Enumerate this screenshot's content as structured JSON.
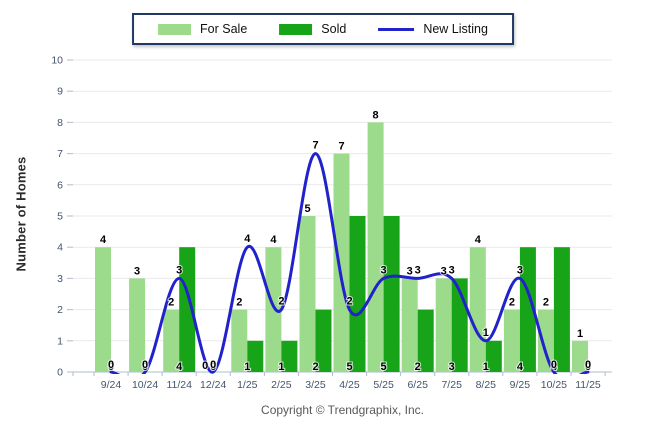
{
  "chart": {
    "ylabel": "Number of Homes",
    "copyright": "Copyright © Trendgraphix, Inc.",
    "legend": [
      {
        "label": "For Sale",
        "type": "bar",
        "color": "#9CDB8C"
      },
      {
        "label": "Sold",
        "type": "bar",
        "color": "#18A418"
      },
      {
        "label": "New Listing",
        "type": "line",
        "color": "#2222CC"
      }
    ],
    "colors": {
      "grid": "#E9E9EC",
      "axis": "#AEBDCE",
      "tick_text": "#44546A",
      "value_text": "#000000",
      "legend_border": "#1F3864"
    }
  },
  "chart_data": {
    "type": "bar",
    "title": "",
    "xlabel": "",
    "ylabel": "Number of Homes",
    "categories": [
      "9/24",
      "10/24",
      "11/24",
      "12/24",
      "1/25",
      "2/25",
      "3/25",
      "4/25",
      "5/25",
      "6/25",
      "7/25",
      "8/25",
      "9/25",
      "10/25",
      "11/25"
    ],
    "series": [
      {
        "name": "For Sale",
        "type": "bar",
        "color": "#9CDB8C",
        "values": [
          4,
          3,
          2,
          0,
          2,
          4,
          5,
          7,
          8,
          3,
          3,
          4,
          2,
          2,
          1
        ]
      },
      {
        "name": "Sold",
        "type": "bar",
        "color": "#18A418",
        "values": [
          0,
          0,
          4,
          0,
          1,
          1,
          2,
          5,
          5,
          2,
          3,
          1,
          4,
          4,
          0
        ]
      },
      {
        "name": "New Listing",
        "type": "line",
        "color": "#2222CC",
        "values": [
          0,
          0,
          3,
          0,
          4,
          2,
          7,
          2,
          3,
          3,
          3,
          1,
          3,
          0,
          0
        ]
      }
    ],
    "ylim": [
      0,
      10
    ],
    "yticks": [
      0,
      1,
      2,
      3,
      4,
      5,
      6,
      7,
      8,
      9,
      10
    ],
    "grid": true,
    "legend_position": "top",
    "value_labels": true
  }
}
